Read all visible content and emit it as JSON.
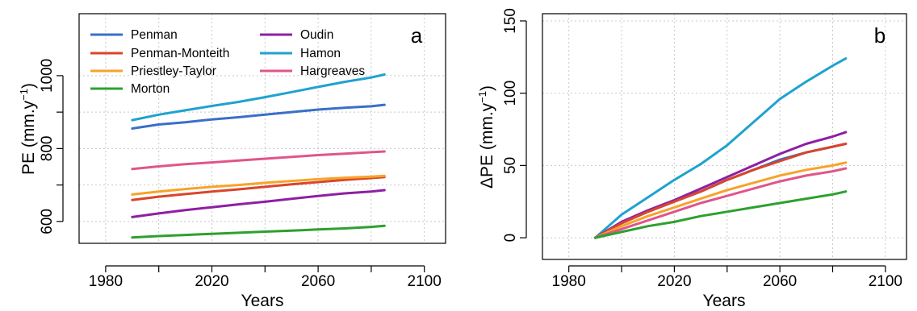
{
  "colors": {
    "Penman": "#3a6fc9",
    "Penman-Monteith": "#d9452b",
    "Priestley-Taylor": "#f7a32b",
    "Morton": "#2ea02e",
    "Oudin": "#8e1fa3",
    "Hamon": "#1fa2cf",
    "Hargreaves": "#e0558a"
  },
  "chart_data": [
    {
      "type": "line",
      "panel_label": "a",
      "xlabel": "Years",
      "ylabel": "PE (mm.y",
      "ylabel_sup": "−1",
      "ylabel_close": ")",
      "xlim": [
        1970,
        2108
      ],
      "ylim": [
        540,
        1170
      ],
      "xticks": [
        "1980",
        "2020",
        "2060",
        "2100"
      ],
      "xtick_values": [
        1980,
        2020,
        2060,
        2100
      ],
      "xticks_unlabeled": [
        2000,
        2040,
        2080
      ],
      "yticks": [
        "600",
        "800",
        "1000"
      ],
      "ytick_values": [
        600,
        800,
        1000
      ],
      "yticks_unlabeled": [
        700,
        900
      ],
      "grid": true,
      "legend_position": "top-left",
      "x": [
        1990,
        2000,
        2010,
        2020,
        2030,
        2040,
        2050,
        2060,
        2070,
        2080,
        2085
      ],
      "series": [
        {
          "name": "Penman",
          "values": [
            855,
            866,
            872,
            880,
            886,
            893,
            900,
            907,
            912,
            916,
            920
          ]
        },
        {
          "name": "Penman-Monteith",
          "values": [
            659,
            668,
            675,
            682,
            688,
            695,
            702,
            708,
            714,
            719,
            722
          ]
        },
        {
          "name": "Priestley-Taylor",
          "values": [
            674,
            682,
            689,
            695,
            700,
            706,
            711,
            716,
            720,
            723,
            725
          ]
        },
        {
          "name": "Morton",
          "values": [
            556,
            560,
            563,
            566,
            569,
            572,
            575,
            578,
            581,
            585,
            588
          ]
        },
        {
          "name": "Oudin",
          "values": [
            612,
            622,
            631,
            639,
            647,
            654,
            662,
            670,
            677,
            682,
            686
          ]
        },
        {
          "name": "Hamon",
          "values": [
            878,
            893,
            905,
            917,
            928,
            941,
            955,
            969,
            983,
            995,
            1003
          ]
        },
        {
          "name": "Hargreaves",
          "values": [
            744,
            751,
            757,
            762,
            767,
            772,
            777,
            782,
            786,
            790,
            792
          ]
        }
      ]
    },
    {
      "type": "line",
      "panel_label": "b",
      "xlabel": "Years",
      "ylabel": "ΔPE (mm.y",
      "ylabel_sup": "−1",
      "ylabel_close": ")",
      "xlim": [
        1970,
        2108
      ],
      "ylim": [
        -15,
        155
      ],
      "xticks": [
        "1980",
        "2020",
        "2060",
        "2100"
      ],
      "xtick_values": [
        1980,
        2020,
        2060,
        2100
      ],
      "xticks_unlabeled": [
        2000,
        2040,
        2080
      ],
      "yticks": [
        "0",
        "50",
        "100",
        "150"
      ],
      "ytick_values": [
        0,
        50,
        100,
        150
      ],
      "grid": true,
      "x": [
        1990,
        2000,
        2010,
        2020,
        2030,
        2040,
        2050,
        2060,
        2070,
        2080,
        2085
      ],
      "series": [
        {
          "name": "Hamon",
          "values": [
            0,
            16,
            28,
            40,
            51,
            64,
            80,
            96,
            108,
            119,
            124
          ]
        },
        {
          "name": "Oudin",
          "values": [
            0,
            11,
            19,
            26,
            34,
            42,
            50,
            58,
            65,
            70,
            73
          ]
        },
        {
          "name": "Penman",
          "values": [
            0,
            10,
            18,
            25,
            32,
            40,
            47,
            54,
            59,
            63,
            65
          ]
        },
        {
          "name": "Penman-Monteith",
          "values": [
            0,
            10,
            18,
            25,
            32,
            40,
            47,
            53,
            59,
            63,
            65
          ]
        },
        {
          "name": "Priestley-Taylor",
          "values": [
            0,
            8,
            15,
            21,
            27,
            33,
            38,
            43,
            47,
            50,
            52
          ]
        },
        {
          "name": "Hargreaves",
          "values": [
            0,
            6,
            12,
            18,
            24,
            29,
            34,
            39,
            43,
            46,
            48
          ]
        },
        {
          "name": "Morton",
          "values": [
            0,
            4,
            8,
            11,
            15,
            18,
            21,
            24,
            27,
            30,
            32
          ]
        }
      ]
    }
  ]
}
